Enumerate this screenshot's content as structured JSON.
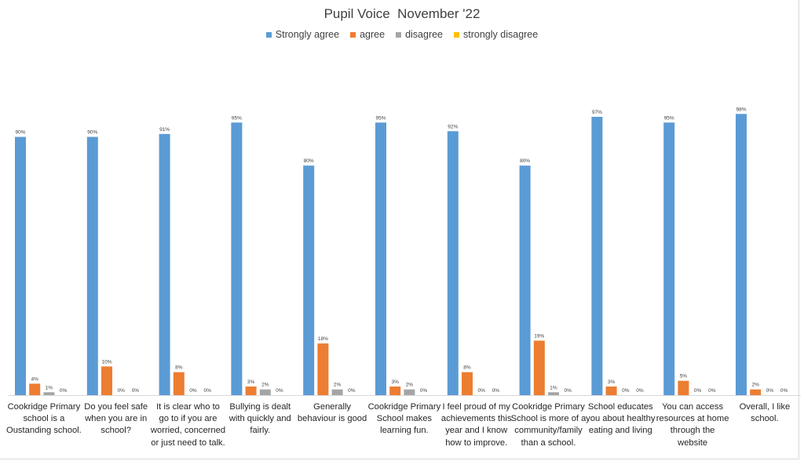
{
  "chart_data": {
    "type": "bar",
    "title": "Pupil Voice  November '22",
    "xlabel": "",
    "ylabel": "",
    "ylim": [
      0,
      100
    ],
    "grid": false,
    "legend_position": "top",
    "categories": [
      "Cookridge Primary school is a Oustanding school.",
      "Do you feel safe when you are in school?",
      "It is clear who to go to if you are worried, concerned or just need to talk.",
      "Bullying is dealt with quickly and fairly.",
      "Generally behaviour is good",
      "Cookridge Primary School makes learning fun.",
      "I feel proud of my achievements this year and I know how to improve.",
      "Cookridge Primary School is more of a community/family than a school.",
      "School educates you about healthy eating and living",
      "You can access resources at home through the website",
      "Overall, I like school."
    ],
    "series": [
      {
        "name": "Strongly agree",
        "color": "#5b9bd5",
        "values": [
          90,
          90,
          91,
          95,
          80,
          95,
          92,
          80,
          97,
          95,
          98
        ]
      },
      {
        "name": "agree",
        "color": "#ed7d31",
        "values": [
          4,
          10,
          8,
          3,
          18,
          3,
          8,
          19,
          3,
          5,
          2
        ]
      },
      {
        "name": "disagree",
        "color": "#a5a5a5",
        "values": [
          1,
          0,
          0,
          2,
          2,
          2,
          0,
          1,
          0,
          0,
          0
        ]
      },
      {
        "name": "strongly disagree",
        "color": "#ffc000",
        "values": [
          0,
          0,
          0,
          0,
          0,
          0,
          0,
          0,
          0,
          0,
          0
        ]
      }
    ],
    "value_suffix": "%"
  }
}
